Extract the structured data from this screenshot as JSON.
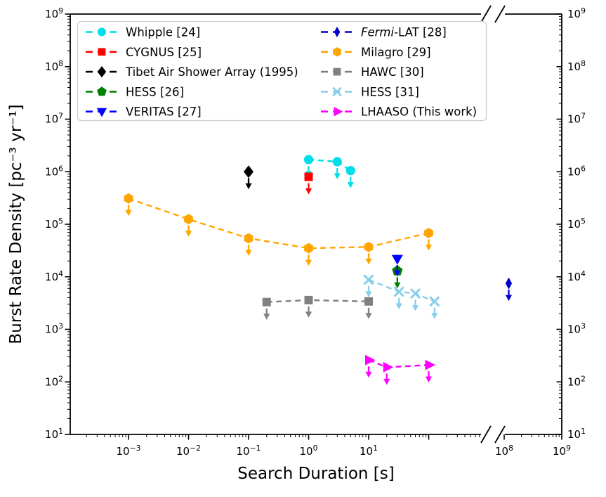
{
  "chart_data": {
    "type": "scatter",
    "title": "",
    "xlabel": "Search Duration [s]",
    "ylabel": "Burst Rate Density [pc⁻³ yr⁻¹]",
    "xscale": "log-broken",
    "yscale": "log",
    "grid": false,
    "legend_position": "upper center, 2 columns",
    "x_axis": {
      "labeled_tick_exponents_left_segment": [
        -3,
        -2,
        -1,
        0,
        1
      ],
      "unlabeled_major_exponents_left_segment": [
        2
      ],
      "labeled_tick_exponents_right_segment": [
        8,
        9
      ],
      "left_segment_range_exponents": [
        -4,
        3
      ],
      "right_segment_range_exponents": [
        8,
        9
      ],
      "break_between_exponents": [
        3,
        8
      ]
    },
    "y_axis": {
      "tick_exponents": [
        1,
        2,
        3,
        4,
        5,
        6,
        7,
        8,
        9
      ],
      "range_exponents": [
        1,
        9
      ],
      "labels_on_both_sides": true
    },
    "upper_limit_note": "all points are upper limits drawn with downward arrows",
    "series": [
      {
        "name": "Whipple [24]",
        "color": "#00dfe8",
        "marker": "circle",
        "line": "dashed",
        "upper_limits": true,
        "points": [
          [
            1,
            1700000.0
          ],
          [
            3,
            1550000.0
          ],
          [
            5,
            1050000.0
          ]
        ]
      },
      {
        "name": "CYGNUS [25]",
        "color": "#ff0000",
        "marker": "square",
        "line": "dashed",
        "upper_limits": true,
        "points": [
          [
            1,
            800000.0
          ]
        ]
      },
      {
        "name": "Tibet Air Shower Array (1995)",
        "color": "#000000",
        "marker": "diamond",
        "line": "dashed",
        "upper_limits": true,
        "points": [
          [
            0.1,
            1000000.0
          ]
        ]
      },
      {
        "name": "HESS [26]",
        "color": "#008000",
        "marker": "pentagon",
        "line": "dashed",
        "upper_limits": true,
        "points": [
          [
            30,
            13000.0
          ]
        ]
      },
      {
        "name": "VERITAS [27]",
        "color": "#0000ff",
        "marker": "triangle-down",
        "line": "dashed",
        "upper_limits": true,
        "points": [
          [
            30,
            22000.0
          ]
        ]
      },
      {
        "name": "Fermi-LAT [28]",
        "color": "#0000cd",
        "marker": "thin-diamond",
        "line": "dashed",
        "upper_limits": true,
        "label_parts": [
          {
            "text": "Fermi",
            "italic": true
          },
          {
            "text": "-LAT [28]",
            "italic": false
          }
        ],
        "points": [
          [
            120000000.0,
            7500.0
          ]
        ]
      },
      {
        "name": "Milagro [29]",
        "color": "#ffa500",
        "marker": "hexagon",
        "line": "dashed",
        "upper_limits": true,
        "points": [
          [
            0.001,
            310000.0
          ],
          [
            0.01,
            125000.0
          ],
          [
            0.1,
            54000.0
          ],
          [
            1,
            35000.0
          ],
          [
            10,
            37000.0
          ],
          [
            100,
            68000.0
          ]
        ]
      },
      {
        "name": "HAWC [30]",
        "color": "#808080",
        "marker": "square",
        "line": "dashed",
        "upper_limits": true,
        "points": [
          [
            0.2,
            3300.0
          ],
          [
            1,
            3600.0
          ],
          [
            10,
            3400.0
          ]
        ]
      },
      {
        "name": "HESS [31]",
        "color": "#87ceeb",
        "marker": "x",
        "line": "dashed",
        "upper_limits": true,
        "points": [
          [
            10,
            8800.0
          ],
          [
            32,
            5200.0
          ],
          [
            60,
            4800.0
          ],
          [
            125,
            3400.0
          ]
        ]
      },
      {
        "name": "LHAASO (This work)",
        "color": "#ff00ff",
        "marker": "triangle-right",
        "line": "dashed",
        "upper_limits": true,
        "points": [
          [
            10,
            260.0
          ],
          [
            20,
            190.0
          ],
          [
            100,
            210.0
          ]
        ]
      }
    ],
    "legend_columns": [
      [
        0,
        1,
        2,
        3,
        4
      ],
      [
        5,
        6,
        7,
        8,
        9
      ]
    ],
    "colors": {
      "axis": "#000000",
      "legend_border": "#cccccc",
      "background": "#ffffff"
    }
  }
}
